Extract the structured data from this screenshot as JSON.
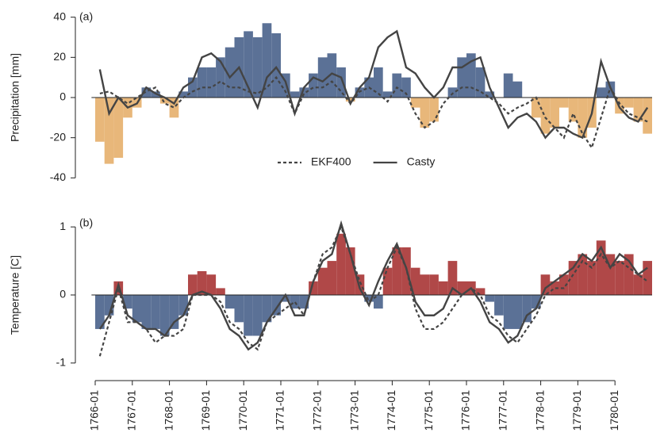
{
  "chart_data": [
    {
      "type": "bar_line",
      "annotation": "(a)",
      "ylabel": "Precipitation [mm]",
      "xlim": [
        1765.9,
        1781.0
      ],
      "ylim": [
        -45,
        45
      ],
      "yticks": [
        -40,
        -20,
        0,
        20,
        40
      ],
      "pos_color": "#5b7196",
      "neg_color": "#e8b77a",
      "legend": "bottom-center",
      "x": [
        1766,
        1766.25,
        1766.5,
        1766.75,
        1767,
        1767.25,
        1767.5,
        1767.75,
        1768,
        1768.25,
        1768.5,
        1768.75,
        1769,
        1769.25,
        1769.5,
        1769.75,
        1770,
        1770.25,
        1770.5,
        1770.75,
        1771,
        1771.25,
        1771.5,
        1771.75,
        1772,
        1772.25,
        1772.5,
        1772.75,
        1773,
        1773.25,
        1773.5,
        1773.75,
        1774,
        1774.25,
        1774.5,
        1774.75,
        1775,
        1775.25,
        1775.5,
        1775.75,
        1776,
        1776.25,
        1776.5,
        1776.75,
        1777,
        1777.25,
        1777.5,
        1777.75,
        1778,
        1778.25,
        1778.5,
        1778.75,
        1779,
        1779.25,
        1779.5,
        1779.75,
        1780,
        1780.25,
        1780.5,
        1780.75
      ],
      "values": [
        -22,
        -33,
        -30,
        -10,
        -5,
        5,
        3,
        -3,
        -10,
        3,
        10,
        15,
        15,
        20,
        25,
        30,
        33,
        30,
        37,
        32,
        12,
        3,
        5,
        12,
        20,
        22,
        15,
        -2,
        5,
        10,
        15,
        3,
        12,
        10,
        -5,
        -15,
        -12,
        0,
        5,
        20,
        22,
        15,
        3,
        0,
        12,
        8,
        0,
        -10,
        -18,
        -15,
        -5,
        -12,
        -20,
        -15,
        5,
        8,
        -8,
        -5,
        -12,
        -18
      ],
      "series": [
        {
          "name": "EKF400",
          "color": "#444444",
          "dash": true,
          "values": [
            2,
            3,
            0,
            -3,
            0,
            3,
            5,
            -3,
            -5,
            0,
            3,
            5,
            5,
            8,
            5,
            5,
            3,
            2,
            5,
            10,
            3,
            -8,
            2,
            5,
            5,
            8,
            3,
            -3,
            3,
            5,
            2,
            -2,
            5,
            2,
            -8,
            -15,
            -12,
            -3,
            2,
            5,
            5,
            3,
            0,
            -3,
            -8,
            -5,
            -3,
            0,
            -10,
            -15,
            -20,
            -8,
            -18,
            -25,
            -10,
            5,
            -3,
            -8,
            -10,
            -12
          ]
        },
        {
          "name": "Casty",
          "color": "#444444",
          "dash": false,
          "values": [
            14,
            -8,
            0,
            -5,
            -3,
            5,
            2,
            0,
            -3,
            5,
            8,
            20,
            22,
            18,
            10,
            15,
            5,
            -5,
            10,
            15,
            8,
            -8,
            5,
            10,
            8,
            12,
            10,
            -3,
            5,
            10,
            25,
            30,
            33,
            15,
            12,
            5,
            0,
            5,
            15,
            15,
            18,
            20,
            5,
            -5,
            -15,
            -10,
            -8,
            -12,
            -20,
            -15,
            -15,
            -18,
            -20,
            -8,
            18,
            5,
            -5,
            -10,
            -12,
            -5
          ]
        }
      ]
    },
    {
      "type": "bar_line",
      "annotation": "(b)",
      "ylabel": "Temperature [C]",
      "xlim": [
        1765.9,
        1781.0
      ],
      "ylim": [
        -1.2,
        1.2
      ],
      "yticks": [
        -1,
        0,
        1
      ],
      "pos_color": "#b04848",
      "neg_color": "#5b7196",
      "xticks": [
        {
          "value": 1766,
          "label": "1766-01"
        },
        {
          "value": 1767,
          "label": "1767-01"
        },
        {
          "value": 1768,
          "label": "1768-01"
        },
        {
          "value": 1769,
          "label": "1769-01"
        },
        {
          "value": 1770,
          "label": "1770-01"
        },
        {
          "value": 1771,
          "label": "1771-01"
        },
        {
          "value": 1772,
          "label": "1772-01"
        },
        {
          "value": 1773,
          "label": "1773-01"
        },
        {
          "value": 1774,
          "label": "1774-01"
        },
        {
          "value": 1775,
          "label": "1775-01"
        },
        {
          "value": 1776,
          "label": "1776-01"
        },
        {
          "value": 1777,
          "label": "1777-01"
        },
        {
          "value": 1778,
          "label": "1778-01"
        },
        {
          "value": 1779,
          "label": "1779-01"
        },
        {
          "value": 1780,
          "label": "1780-01"
        }
      ],
      "x": [
        1766,
        1766.25,
        1766.5,
        1766.75,
        1767,
        1767.25,
        1767.5,
        1767.75,
        1768,
        1768.25,
        1768.5,
        1768.75,
        1769,
        1769.25,
        1769.5,
        1769.75,
        1770,
        1770.25,
        1770.5,
        1770.75,
        1771,
        1771.25,
        1771.5,
        1771.75,
        1772,
        1772.25,
        1772.5,
        1772.75,
        1773,
        1773.25,
        1773.5,
        1773.75,
        1774,
        1774.25,
        1774.5,
        1774.75,
        1775,
        1775.25,
        1775.5,
        1775.75,
        1776,
        1776.25,
        1776.5,
        1776.75,
        1777,
        1777.25,
        1777.5,
        1777.75,
        1778,
        1778.25,
        1778.5,
        1778.75,
        1779,
        1779.25,
        1779.5,
        1779.75,
        1780,
        1780.25,
        1780.5,
        1780.75
      ],
      "values": [
        -0.5,
        -0.3,
        0.2,
        -0.2,
        -0.4,
        -0.5,
        -0.5,
        -0.6,
        -0.5,
        -0.3,
        0.3,
        0.35,
        0.3,
        0.1,
        -0.2,
        -0.4,
        -0.6,
        -0.6,
        -0.4,
        -0.3,
        -0.1,
        -0.2,
        -0.2,
        0.2,
        0.4,
        0.5,
        0.9,
        0.7,
        0.3,
        -0.1,
        -0.2,
        0.4,
        0.7,
        0.7,
        0.4,
        0.3,
        0.3,
        0.2,
        0.5,
        0.2,
        0.2,
        0.1,
        -0.1,
        -0.3,
        -0.5,
        -0.5,
        -0.4,
        -0.2,
        0.3,
        0.2,
        0.3,
        0.5,
        0.6,
        0.5,
        0.8,
        0.6,
        0.5,
        0.6,
        0.3,
        0.5
      ],
      "series": [
        {
          "name": "EKF400",
          "color": "#444444",
          "dash": true,
          "values": [
            -0.9,
            -0.4,
            0.1,
            -0.4,
            -0.4,
            -0.5,
            -0.7,
            -0.6,
            -0.6,
            -0.5,
            0.0,
            0.0,
            0.0,
            -0.1,
            -0.4,
            -0.5,
            -0.7,
            -0.8,
            -0.4,
            -0.3,
            -0.2,
            -0.1,
            -0.3,
            0.2,
            0.6,
            0.7,
            1.0,
            0.6,
            0.2,
            -0.1,
            0.0,
            0.4,
            0.7,
            0.4,
            -0.2,
            -0.5,
            -0.5,
            -0.4,
            -0.2,
            0.0,
            0.1,
            0.0,
            -0.3,
            -0.4,
            -0.6,
            -0.7,
            -0.5,
            -0.3,
            0.0,
            0.1,
            0.1,
            0.3,
            0.5,
            0.4,
            0.6,
            0.4,
            0.5,
            0.4,
            0.3,
            0.2
          ]
        },
        {
          "name": "Casty",
          "color": "#444444",
          "dash": false,
          "values": [
            -0.5,
            -0.3,
            0.15,
            -0.3,
            -0.4,
            -0.5,
            -0.5,
            -0.6,
            -0.4,
            -0.3,
            0.0,
            0.05,
            0.0,
            -0.2,
            -0.5,
            -0.6,
            -0.8,
            -0.7,
            -0.4,
            -0.2,
            0.0,
            -0.3,
            -0.3,
            0.2,
            0.5,
            0.6,
            1.05,
            0.6,
            0.1,
            -0.15,
            0.2,
            0.5,
            0.75,
            0.4,
            -0.1,
            -0.3,
            -0.3,
            -0.2,
            0.1,
            0.0,
            0.1,
            -0.1,
            -0.4,
            -0.5,
            -0.7,
            -0.6,
            -0.3,
            -0.2,
            0.1,
            0.2,
            0.3,
            0.4,
            0.6,
            0.5,
            0.7,
            0.4,
            0.6,
            0.5,
            0.3,
            0.4
          ]
        }
      ]
    }
  ]
}
